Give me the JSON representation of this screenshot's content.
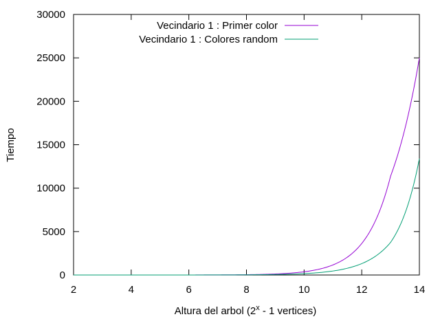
{
  "chart_data": {
    "type": "line",
    "xlabel_main": "Altura del arbol (2",
    "xlabel_sup": "x",
    "xlabel_tail": " - 1 vertices)",
    "ylabel": "Tiempo",
    "xlim": [
      2,
      14
    ],
    "ylim": [
      0,
      30000
    ],
    "x_ticks": [
      "2",
      "4",
      "6",
      "8",
      "10",
      "12",
      "14"
    ],
    "y_ticks": [
      "0",
      "5000",
      "10000",
      "15000",
      "20000",
      "25000",
      "30000"
    ],
    "grid": false,
    "legend_position": "top-center",
    "series": [
      {
        "name": "Vecindario 1 : Primer color",
        "color": "#9400d3",
        "x": [
          2,
          3,
          4,
          5,
          6,
          7,
          8,
          9,
          10,
          11,
          12,
          13,
          14
        ],
        "y": [
          0,
          0,
          0,
          1,
          4,
          13,
          38,
          119,
          370,
          1160,
          3630,
          11370,
          25000
        ]
      },
      {
        "name": "Vecindario 1 : Colores random",
        "color": "#009e73",
        "x": [
          2,
          3,
          4,
          5,
          6,
          7,
          8,
          9,
          10,
          11,
          12,
          13,
          14
        ],
        "y": [
          0,
          0,
          0,
          1,
          3,
          8,
          20,
          57,
          160,
          460,
          1310,
          3750,
          13400
        ]
      }
    ]
  }
}
